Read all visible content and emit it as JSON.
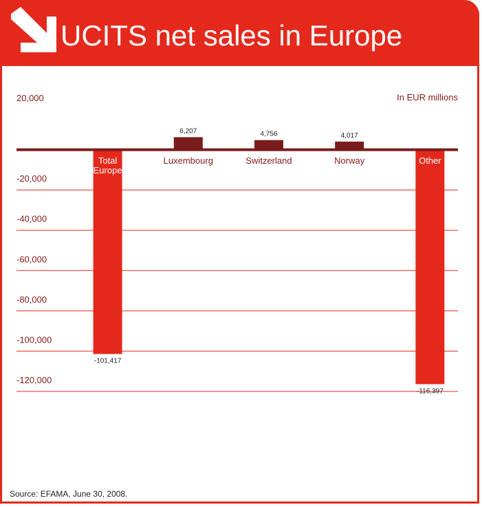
{
  "chart_data": {
    "type": "bar",
    "title": "UCITS net sales in Europe",
    "unit_label": "In EUR millions",
    "source": "Source: EFAMA, June 30, 2008.",
    "categories": [
      "Total Europe",
      "Luxembourg",
      "Switzerland",
      "Norway",
      "Other"
    ],
    "values": [
      -101417,
      6207,
      4756,
      4017,
      -116397
    ],
    "value_labels": [
      "-101,417",
      "6,207",
      "4,756",
      "4,017",
      "-116,397"
    ],
    "colors": [
      "#e4291c",
      "#7a1c1c",
      "#7a1c1c",
      "#7a1c1c",
      "#e4291c"
    ],
    "ylim": [
      -120000,
      20000
    ],
    "yticks": [
      {
        "value": 20000,
        "label": "20,000"
      },
      {
        "value": -20000,
        "label": "-20,000"
      },
      {
        "value": -40000,
        "label": "-40,000"
      },
      {
        "value": -60000,
        "label": "-60,000"
      },
      {
        "value": -80000,
        "label": "-80,000"
      },
      {
        "value": -100000,
        "label": "-100,000"
      },
      {
        "value": -120000,
        "label": "-120,000"
      }
    ],
    "grid": true
  }
}
